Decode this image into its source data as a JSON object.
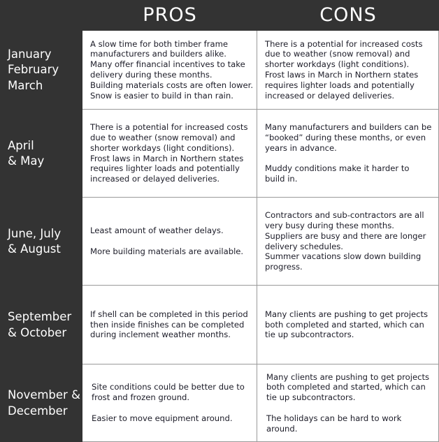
{
  "header": {
    "pros": "PROS",
    "cons": "CONS"
  },
  "rows": [
    {
      "month": "January\nFebruary\nMarch",
      "pros": "A slow time for both timber frame\nmanufacturers and builders alike.\nMany offer financial incentives to take\ndelivery during these months.\nBuilding materials costs are often lower.\nSnow is easier to build in than rain.",
      "cons": "There is a potential for increased costs\ndue to weather (snow removal) and\nshorter workdays (light conditions).\nFrost laws in March in Northern states\nrequires lighter loads and potentially\nincreased or delayed deliveries."
    },
    {
      "month": "April\n& May",
      "pros": "There is a potential for increased costs\ndue to weather (snow removal) and\nshorter workdays (light conditions).\nFrost laws in March in Northern states\nrequires lighter loads and potentially\nincreased or delayed deliveries.",
      "cons": "Many manufacturers and builders can be\n“booked” during these months, or even\nyears in advance.\n\nMuddy conditions make it harder to\nbuild in."
    },
    {
      "month": "June, July\n& August",
      "pros": "Least amount of weather delays.\n\nMore building materials are available.",
      "cons": "Contractors and sub-contractors are all\nvery busy during these months.\nSuppliers are busy and there are longer\ndelivery schedules.\nSummer vacations slow down building\nprogress."
    },
    {
      "month": "September\n& October",
      "pros": "If shell can be completed in this period\nthen inside finishes can be completed\nduring inclement weather months.",
      "cons": "Many clients are pushing to get projects\nboth completed and started, which can\ntie up subcontractors."
    },
    {
      "month": "November &\nDecember",
      "pros": "Site conditions could be better due to\nfrost and frozen ground.\n\nEasier to move equipment around.",
      "cons": "Many clients are pushing to get projects\nboth completed and started, which can\ntie up subcontractors.\n\nThe holidays can be hard to work\naround."
    }
  ]
}
